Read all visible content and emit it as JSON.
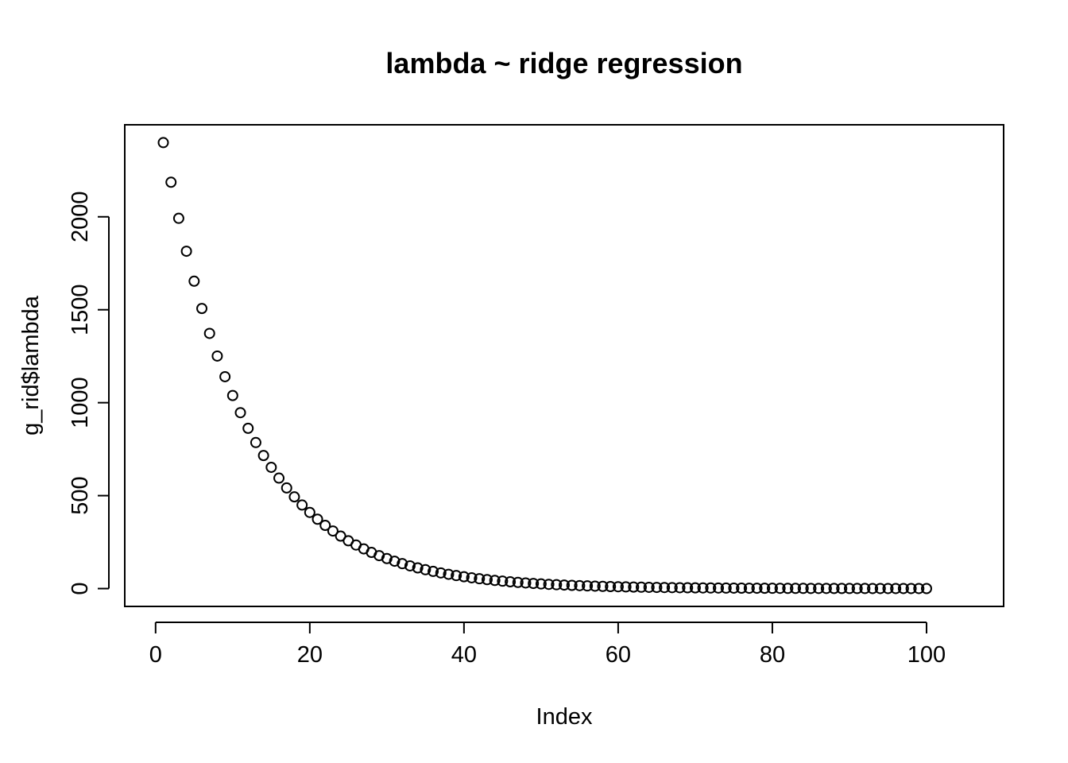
{
  "chart_data": {
    "type": "scatter",
    "title": "lambda ~ ridge regression",
    "xlabel": "Index",
    "ylabel": "g_rid$lambda",
    "x_ticks": [
      0,
      20,
      40,
      60,
      80,
      100
    ],
    "y_ticks": [
      0,
      500,
      1000,
      1500,
      2000
    ],
    "x_tick_labels": [
      "0",
      "20",
      "40",
      "60",
      "80",
      "100"
    ],
    "y_tick_labels": [
      "0",
      "500",
      "1000",
      "1500",
      "2000"
    ],
    "xlim": [
      -4,
      110
    ],
    "ylim": [
      -96,
      2495
    ],
    "grid": false,
    "marker": "open-circle",
    "series": [
      {
        "x": [
          1,
          2,
          3,
          4,
          5,
          6,
          7,
          8,
          9,
          10,
          11,
          12,
          13,
          14,
          15,
          16,
          17,
          18,
          19,
          20,
          21,
          22,
          23,
          24,
          25,
          26,
          27,
          28,
          29,
          30,
          31,
          32,
          33,
          34,
          35,
          36,
          37,
          38,
          39,
          40,
          41,
          42,
          43,
          44,
          45,
          46,
          47,
          48,
          49,
          50,
          51,
          52,
          53,
          54,
          55,
          56,
          57,
          58,
          59,
          60,
          61,
          62,
          63,
          64,
          65,
          66,
          67,
          68,
          69,
          70,
          71,
          72,
          73,
          74,
          75,
          76,
          77,
          78,
          79,
          80,
          81,
          82,
          83,
          84,
          85,
          86,
          87,
          88,
          89,
          90,
          91,
          92,
          93,
          94,
          95,
          96,
          97,
          98,
          99,
          100
        ],
        "values": [
          2399.12,
          2186.01,
          1991.83,
          1814.89,
          1653.67,
          1506.77,
          1372.92,
          1250.96,
          1139.84,
          1038.59,
          946.33,
          862.26,
          785.67,
          715.87,
          652.28,
          594.34,
          541.54,
          493.44,
          449.61,
          409.67,
          373.28,
          340.12,
          309.91,
          282.38,
          257.29,
          234.44,
          213.61,
          194.64,
          177.35,
          161.59,
          147.24,
          134.16,
          122.24,
          111.38,
          101.49,
          92.47,
          84.26,
          76.77,
          69.95,
          63.74,
          58.08,
          52.92,
          48.22,
          43.93,
          40.03,
          36.48,
          33.24,
          30.28,
          27.59,
          25.14,
          22.91,
          20.87,
          19.02,
          17.33,
          15.79,
          14.39,
          13.11,
          11.94,
          10.88,
          9.92,
          9.04,
          8.23,
          7.5,
          6.84,
          6.23,
          5.68,
          5.17,
          4.71,
          4.3,
          3.91,
          3.57,
          3.25,
          2.96,
          2.7,
          2.46,
          2.24,
          2.04,
          1.86,
          1.69,
          1.54,
          1.41,
          1.28,
          1.17,
          1.06,
          0.97,
          0.88,
          0.8,
          0.73,
          0.67,
          0.61,
          0.56,
          0.51,
          0.46,
          0.42,
          0.38,
          0.35,
          0.32,
          0.29,
          0.26,
          0.24
        ]
      }
    ]
  }
}
